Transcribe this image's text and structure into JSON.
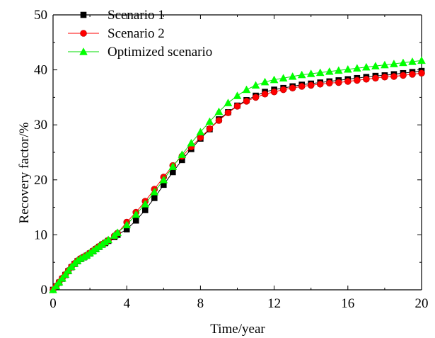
{
  "chart_data": {
    "type": "line",
    "xlabel": "Time/year",
    "ylabel": "Recovery factor/%",
    "xlim": [
      0,
      20
    ],
    "ylim": [
      0,
      50
    ],
    "xticks": [
      "0",
      "4",
      "8",
      "12",
      "16",
      "20"
    ],
    "yticks": [
      "0",
      "10",
      "20",
      "30",
      "40",
      "50"
    ],
    "grid": false,
    "legend_position": "top-left",
    "series": [
      {
        "name": "Scenario 1",
        "color": "#000000",
        "marker": "square",
        "x": [
          0,
          0.17,
          0.33,
          0.5,
          0.67,
          0.83,
          1.0,
          1.17,
          1.33,
          1.5,
          1.67,
          1.83,
          2.0,
          2.17,
          2.33,
          2.5,
          2.67,
          2.83,
          3.0,
          3.33,
          3.5,
          4.0,
          4.5,
          5.0,
          5.5,
          6.0,
          6.5,
          7.0,
          7.5,
          8.0,
          8.5,
          9.0,
          9.5,
          10.0,
          10.5,
          11.0,
          11.5,
          12.0,
          12.5,
          13.0,
          13.5,
          14.0,
          14.5,
          15.0,
          15.5,
          16.0,
          16.5,
          17.0,
          17.5,
          18.0,
          18.5,
          19.0,
          19.5,
          20.0
        ],
        "values": [
          0,
          0.6,
          1.3,
          2.0,
          2.7,
          3.4,
          4.1,
          4.7,
          5.2,
          5.6,
          5.9,
          6.2,
          6.6,
          7.0,
          7.4,
          7.8,
          8.2,
          8.5,
          8.9,
          9.6,
          10.0,
          11.0,
          12.6,
          14.5,
          16.7,
          19.1,
          21.4,
          23.6,
          25.6,
          27.5,
          29.2,
          31.0,
          32.3,
          33.5,
          34.5,
          35.3,
          36.0,
          36.4,
          36.7,
          37.0,
          37.3,
          37.5,
          37.7,
          37.9,
          38.1,
          38.3,
          38.5,
          38.7,
          38.9,
          39.0,
          39.2,
          39.4,
          39.6,
          39.8
        ]
      },
      {
        "name": "Scenario 2",
        "color": "#ff0000",
        "marker": "circle",
        "x": [
          0,
          0.17,
          0.33,
          0.5,
          0.67,
          0.83,
          1.0,
          1.17,
          1.33,
          1.5,
          1.67,
          1.83,
          2.0,
          2.17,
          2.33,
          2.5,
          2.67,
          2.83,
          3.0,
          3.33,
          3.5,
          4.0,
          4.5,
          5.0,
          5.5,
          6.0,
          6.5,
          7.0,
          7.5,
          8.0,
          8.5,
          9.0,
          9.5,
          10.0,
          10.5,
          11.0,
          11.5,
          12.0,
          12.5,
          13.0,
          13.5,
          14.0,
          14.5,
          15.0,
          15.5,
          16.0,
          16.5,
          17.0,
          17.5,
          18.0,
          18.5,
          19.0,
          19.5,
          20.0
        ],
        "values": [
          0,
          0.7,
          1.4,
          2.1,
          2.8,
          3.5,
          4.2,
          4.8,
          5.3,
          5.7,
          6.0,
          6.3,
          6.7,
          7.1,
          7.5,
          7.9,
          8.3,
          8.6,
          9.0,
          9.8,
          10.3,
          12.3,
          14.1,
          16.1,
          18.3,
          20.5,
          22.6,
          24.3,
          26.0,
          27.7,
          29.3,
          30.8,
          32.2,
          33.4,
          34.3,
          35.0,
          35.6,
          36.0,
          36.4,
          36.7,
          37.0,
          37.2,
          37.4,
          37.6,
          37.7,
          37.9,
          38.1,
          38.3,
          38.5,
          38.7,
          38.8,
          39.0,
          39.2,
          39.4
        ]
      },
      {
        "name": "Optimized scenario",
        "color": "#00ff00",
        "marker": "triangle",
        "x": [
          0,
          0.17,
          0.33,
          0.5,
          0.67,
          0.83,
          1.0,
          1.17,
          1.33,
          1.5,
          1.67,
          1.83,
          2.0,
          2.17,
          2.33,
          2.5,
          2.67,
          2.83,
          3.0,
          3.33,
          3.5,
          4.0,
          4.5,
          5.0,
          5.5,
          6.0,
          6.5,
          7.0,
          7.5,
          8.0,
          8.5,
          9.0,
          9.5,
          10.0,
          10.5,
          11.0,
          11.5,
          12.0,
          12.5,
          13.0,
          13.5,
          14.0,
          14.5,
          15.0,
          15.5,
          16.0,
          16.5,
          17.0,
          17.5,
          18.0,
          18.5,
          19.0,
          19.5,
          20.0
        ],
        "values": [
          0,
          0.7,
          1.4,
          2.1,
          2.8,
          3.5,
          4.2,
          4.8,
          5.3,
          5.7,
          6.0,
          6.3,
          6.7,
          7.1,
          7.5,
          7.9,
          8.3,
          8.7,
          9.1,
          9.9,
          10.4,
          11.8,
          13.7,
          15.6,
          17.8,
          20.0,
          22.4,
          24.6,
          26.7,
          28.7,
          30.6,
          32.4,
          34.0,
          35.3,
          36.4,
          37.2,
          37.8,
          38.2,
          38.5,
          38.8,
          39.1,
          39.3,
          39.5,
          39.7,
          39.9,
          40.1,
          40.3,
          40.5,
          40.7,
          40.9,
          41.1,
          41.3,
          41.5,
          41.7
        ]
      }
    ]
  }
}
